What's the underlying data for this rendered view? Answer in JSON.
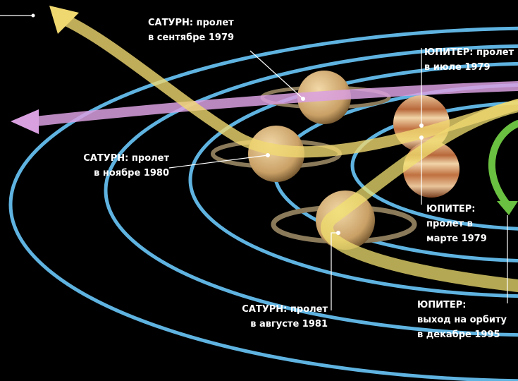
{
  "labels": [
    {
      "lines": [
        "САТУРН: пролет",
        "в сентябре 1979"
      ]
    },
    {
      "lines": [
        "ЮПИТЕР: пролет",
        "в июле 1979"
      ]
    },
    {
      "lines": [
        "САТУРН: пролет",
        "в ноябре 1980"
      ]
    },
    {
      "lines": [
        "ЮПИТЕР:",
        "пролет в",
        "марте 1979"
      ]
    },
    {
      "lines": [
        "САТУРН: пролет",
        "в августе 1981"
      ]
    },
    {
      "lines": [
        "ЮПИТЕР:",
        "выход на орбиту",
        "в декабре 1995"
      ]
    }
  ]
}
